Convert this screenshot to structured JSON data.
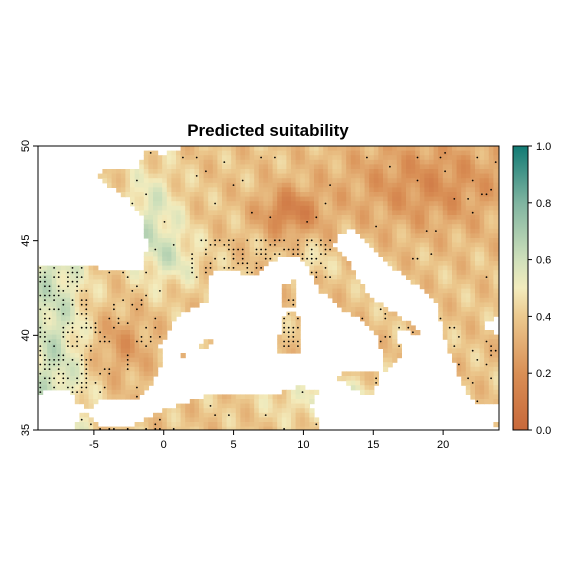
{
  "title": "Predicted suitability",
  "map": {
    "x_range": [
      -9,
      24
    ],
    "y_range": [
      35,
      50
    ],
    "x_ticks": [
      {
        "value": -5,
        "label": "-5"
      },
      {
        "value": 0,
        "label": "0"
      },
      {
        "value": 5,
        "label": "5"
      },
      {
        "value": 10,
        "label": "10"
      },
      {
        "value": 15,
        "label": "15"
      },
      {
        "value": 20,
        "label": "20"
      }
    ],
    "y_ticks": [
      {
        "value": 35,
        "label": "35"
      },
      {
        "value": 40,
        "label": "40"
      },
      {
        "value": 45,
        "label": "45"
      },
      {
        "value": 50,
        "label": "50"
      }
    ],
    "occurrence_points_color": "#000000"
  },
  "legend": {
    "range": [
      0.0,
      1.0
    ],
    "ticks": [
      {
        "value": 0.0,
        "label": "0.0"
      },
      {
        "value": 0.2,
        "label": "0.2"
      },
      {
        "value": 0.4,
        "label": "0.4"
      },
      {
        "value": 0.6,
        "label": "0.6"
      },
      {
        "value": 0.8,
        "label": "0.8"
      },
      {
        "value": 1.0,
        "label": "1.0"
      }
    ],
    "colors": [
      {
        "value": 0.0,
        "color": "#c8683a"
      },
      {
        "value": 0.2,
        "color": "#d98f55"
      },
      {
        "value": 0.4,
        "color": "#ecc98e"
      },
      {
        "value": 0.5,
        "color": "#f3ecbd"
      },
      {
        "value": 0.6,
        "color": "#cfe0bb"
      },
      {
        "value": 0.8,
        "color": "#7fb4a0"
      },
      {
        "value": 1.0,
        "color": "#117a74"
      }
    ]
  }
}
